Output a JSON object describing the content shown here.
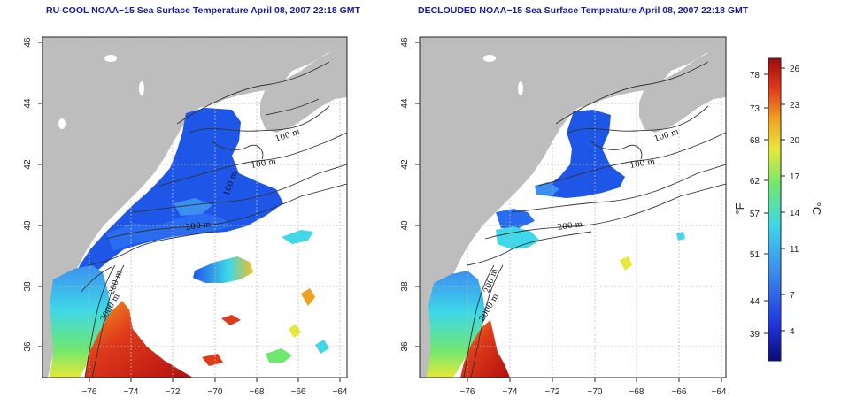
{
  "panels": [
    {
      "id": "left",
      "title": "RU COOL NOAA−15 Sea Surface Temperature April 08, 2007 22:18 GMT",
      "contour_labels": [
        "100 m",
        "100 m",
        "100 m",
        "200 m",
        "200 m",
        "2000 m"
      ]
    },
    {
      "id": "right",
      "title": "DECLOUDED NOAA−15 Sea Surface Temperature April 08, 2007 22:18 GMT",
      "contour_labels": [
        "100 m",
        "100 m",
        "200 m",
        "200 m",
        "2000 m"
      ]
    }
  ],
  "x_ticks": [
    "−76",
    "−74",
    "−72",
    "−70",
    "−68",
    "−66",
    "−64"
  ],
  "y_ticks": [
    "36",
    "38",
    "40",
    "42",
    "44",
    "46"
  ],
  "colorbar": {
    "fahrenheit_ticks": [
      "78",
      "73",
      "68",
      "62",
      "57",
      "51",
      "44",
      "39"
    ],
    "celsius_ticks": [
      "26",
      "23",
      "20",
      "17",
      "14",
      "11",
      "7",
      "4"
    ],
    "fahrenheit_unit": "°F",
    "celsius_unit": "°C",
    "colors": [
      "#0b0b7a",
      "#1e34e0",
      "#3b8ff0",
      "#3ed8e8",
      "#6fe86f",
      "#e8e83a",
      "#f0a020",
      "#e03a1a",
      "#a00a0a"
    ]
  },
  "colors": {
    "land": "#bdbdbd",
    "ocean": "#ffffff",
    "title": "#1a1a9e",
    "grid": "#bbbbbb"
  }
}
